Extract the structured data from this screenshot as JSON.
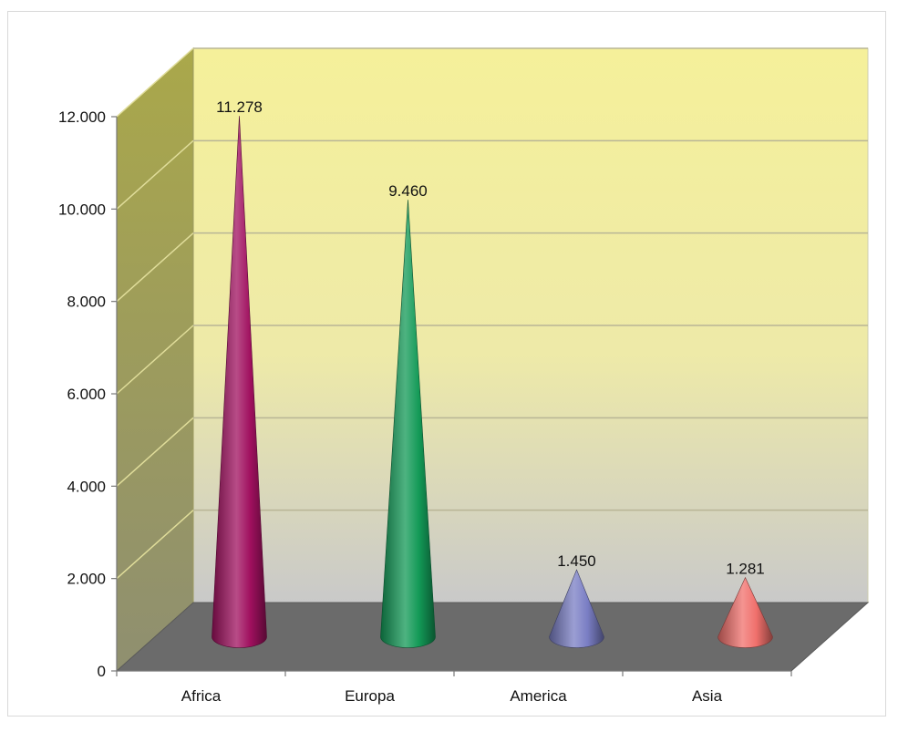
{
  "chart_data": {
    "type": "bar",
    "bar_shape": "cone",
    "categories": [
      "Africa",
      "Europa",
      "America",
      "Asia"
    ],
    "values": [
      11278,
      9460,
      1450,
      1281
    ],
    "value_labels": [
      "11.278",
      "9.460",
      "1.450",
      "1.281"
    ],
    "title": "",
    "xlabel": "",
    "ylabel": "",
    "ylim": [
      0,
      12000
    ],
    "yticks": [
      0,
      2000,
      4000,
      6000,
      8000,
      10000,
      12000
    ],
    "ytick_labels": [
      "0",
      "2.000",
      "4.000",
      "6.000",
      "8.000",
      "10.000",
      "12.000"
    ],
    "grid": true,
    "legend": "none",
    "colors": [
      "#a0105f",
      "#139a57",
      "#7a7ec4",
      "#f0706c"
    ],
    "wall_color": "#f5f09a",
    "floor_color": "#6b6b6b",
    "side_wall_color": "#aaa84a"
  }
}
